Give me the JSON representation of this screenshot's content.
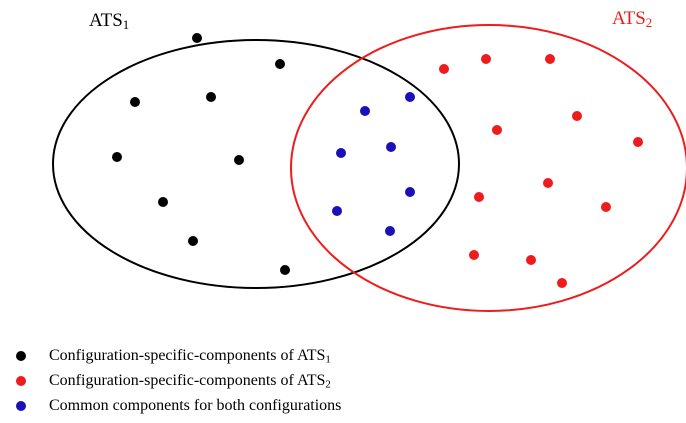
{
  "colors": {
    "ats1": "#000000",
    "ats2": "#ee1c1c",
    "common": "#1b0fb8",
    "ats2_outline": "#ee1c1c",
    "ats1_outline": "#000000"
  },
  "sets": [
    {
      "id": "ats1",
      "label_base": "ATS",
      "label_sub": "1"
    },
    {
      "id": "ats2",
      "label_base": "ATS",
      "label_sub": "2"
    }
  ],
  "legend": [
    {
      "color_key": "ats1",
      "text": "Configuration-specific-components of ATS",
      "sub": "1"
    },
    {
      "color_key": "ats2",
      "text": "Configuration-specific-components of ATS",
      "sub": "2"
    },
    {
      "color_key": "common",
      "text": "Common components for both configurations",
      "sub": ""
    }
  ]
}
